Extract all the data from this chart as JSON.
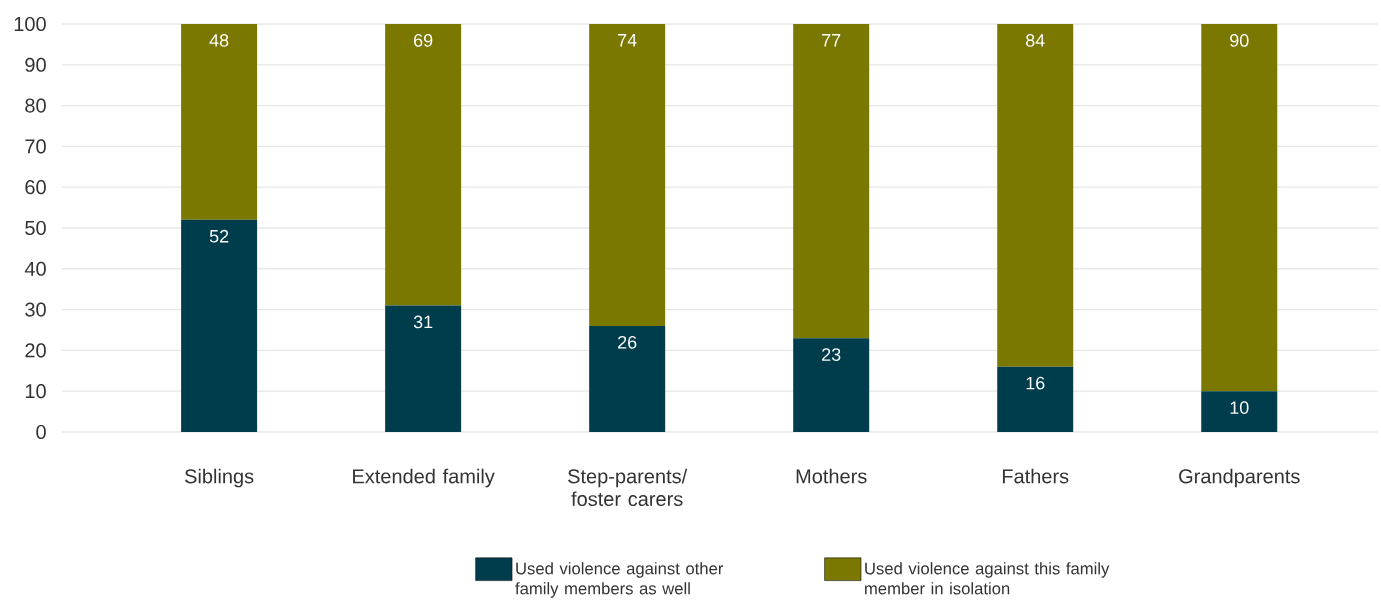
{
  "chart_data": {
    "type": "bar",
    "stacked": true,
    "categories": [
      "Siblings",
      "Extended family",
      "Step-parents/ foster carers",
      "Mothers",
      "Fathers",
      "Grandparents"
    ],
    "series": [
      {
        "name": "Used violence against other family members as well",
        "color": "#003d4c",
        "values": [
          52,
          31,
          26,
          23,
          16,
          10
        ]
      },
      {
        "name": "Used violence against this family member in isolation",
        "color": "#7a7800",
        "values": [
          48,
          69,
          74,
          77,
          84,
          90
        ]
      }
    ],
    "ylim": [
      0,
      100
    ],
    "yticks": [
      0,
      10,
      20,
      30,
      40,
      50,
      60,
      70,
      80,
      90,
      100
    ],
    "grid": "y",
    "legend": "bottom",
    "data_labels": true
  }
}
